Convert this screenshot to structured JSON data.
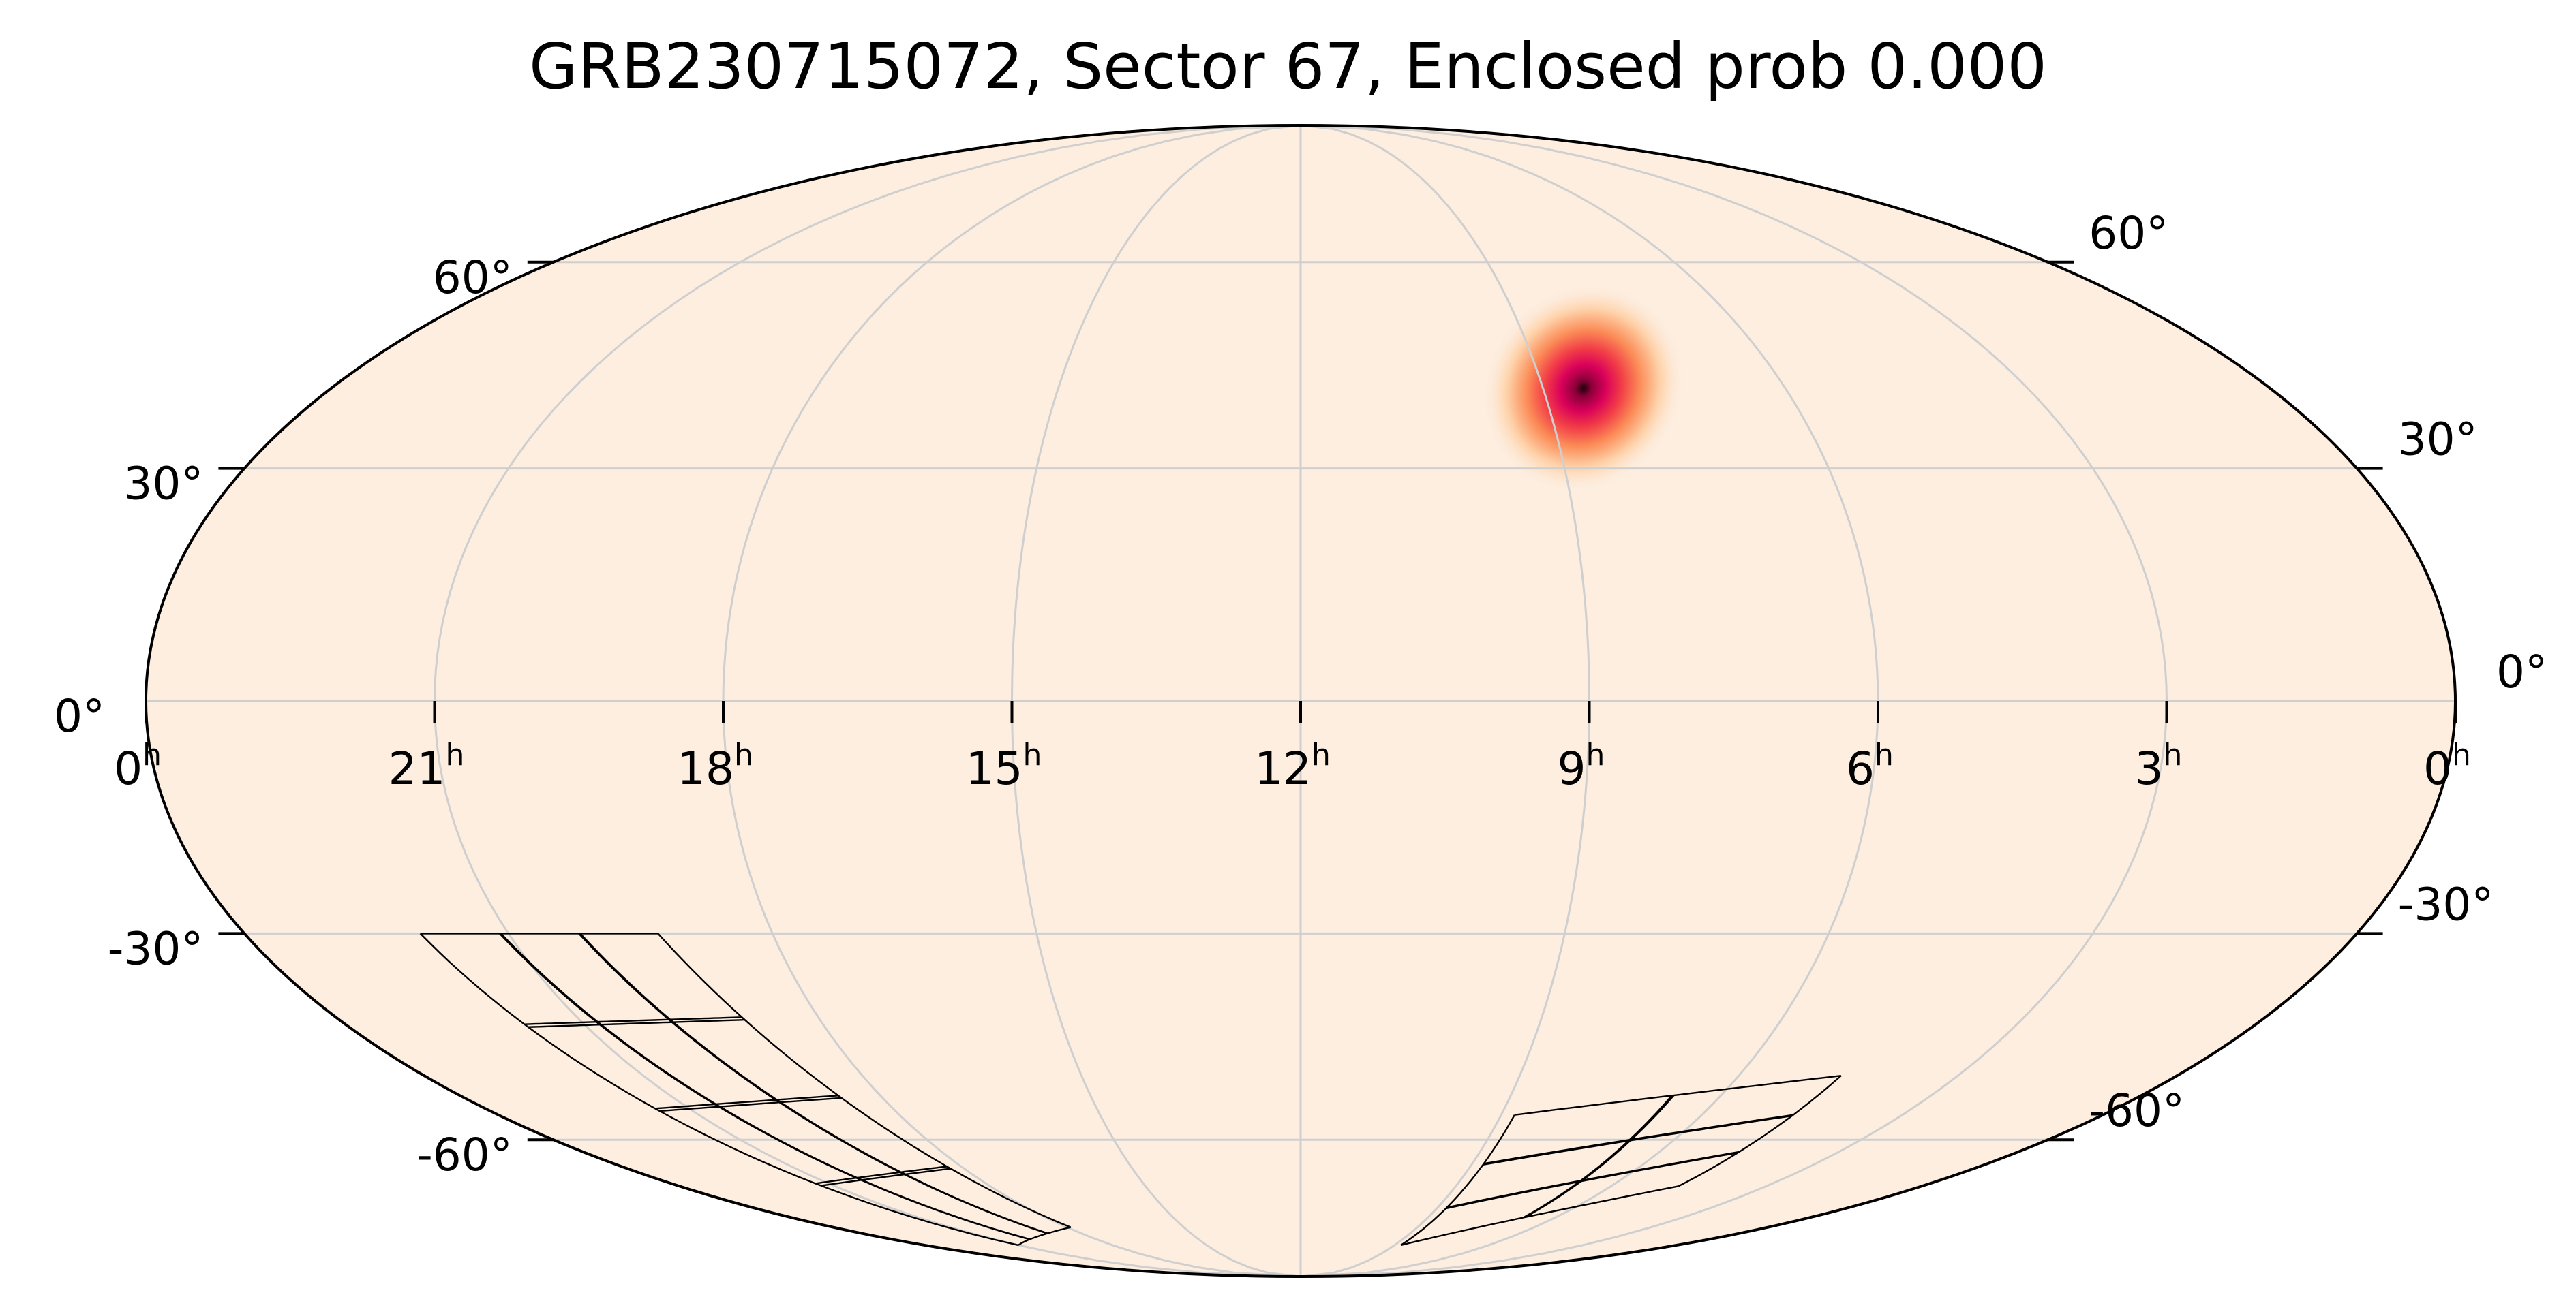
{
  "chart_data": {
    "type": "heatmap",
    "projection": "mollweide",
    "title": "GRB230715072, Sector 67, Enclosed prob 0.000",
    "colormap": {
      "background": "#fdeee0",
      "stops": [
        "#fdeee0",
        "#fed0a6",
        "#fb8a56",
        "#f23d47",
        "#d9005a",
        "#8a0039",
        "#1e0008"
      ]
    },
    "grid": true,
    "ra_ticks_hours": [
      0,
      3,
      6,
      9,
      12,
      15,
      18,
      21,
      24
    ],
    "ra_tick_labels": [
      {
        "h": 24,
        "label": "0"
      },
      {
        "h": 21,
        "label": "21"
      },
      {
        "h": 18,
        "label": "18"
      },
      {
        "h": 15,
        "label": "15"
      },
      {
        "h": 12,
        "label": "12"
      },
      {
        "h": 9,
        "label": "9"
      },
      {
        "h": 6,
        "label": "6"
      },
      {
        "h": 3,
        "label": "3"
      },
      {
        "h": 0,
        "label": "0"
      }
    ],
    "ra_unit": "h",
    "dec_ticks_deg": [
      -60,
      -30,
      0,
      30,
      60
    ],
    "dec_tick_labels": [
      "-60°",
      "-30°",
      "0°",
      "30°",
      "60°"
    ],
    "probability_blob": {
      "ra_hours": 8.5,
      "dec_deg": 41,
      "sigma_deg": 7
    },
    "sector_fields": [
      {
        "name": "camera-group-a",
        "corners": [
          [
            22.0,
            -30
          ],
          [
            19.3,
            -30
          ],
          [
            17.9,
            -76
          ],
          [
            21.0,
            -80
          ]
        ],
        "divisions": [
          3,
          4
        ]
      },
      {
        "name": "camera-group-b",
        "corners": [
          [
            8.8,
            -56
          ],
          [
            4.6,
            -50
          ],
          [
            4.7,
            -68
          ],
          [
            8.8,
            -80
          ]
        ],
        "divisions": [
          2,
          3
        ]
      }
    ]
  }
}
